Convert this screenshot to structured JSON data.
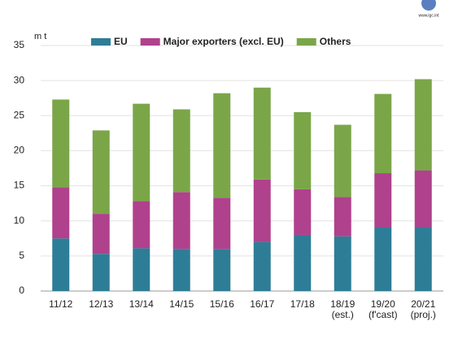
{
  "chart_data": {
    "type": "stacked_bar",
    "y_unit_label": "m t",
    "logo_text": "www.igc.int",
    "categories": [
      "11/12",
      "12/13",
      "13/14",
      "14/15",
      "15/16",
      "16/17",
      "17/18",
      "18/19\n(est.)",
      "19/20\n(f'cast)",
      "20/21\n(proj.)"
    ],
    "series": [
      {
        "name": "EU",
        "color": "#2e7d96",
        "values": [
          7.5,
          5.3,
          6.1,
          6.0,
          6.0,
          7.0,
          8.0,
          7.8,
          9.1,
          9.1
        ]
      },
      {
        "name": "Major exporters (excl. EU)",
        "color": "#b0418c",
        "values": [
          7.3,
          5.7,
          6.7,
          8.1,
          7.3,
          8.9,
          6.5,
          5.6,
          7.7,
          8.1
        ]
      },
      {
        "name": "Others",
        "color": "#7aa648",
        "values": [
          12.5,
          11.9,
          13.9,
          11.8,
          14.9,
          13.1,
          11.0,
          10.3,
          11.3,
          13.0
        ]
      }
    ],
    "ylim": [
      0,
      35
    ],
    "yticks": [
      0,
      5,
      10,
      15,
      20,
      25,
      30,
      35
    ],
    "grid": true
  }
}
